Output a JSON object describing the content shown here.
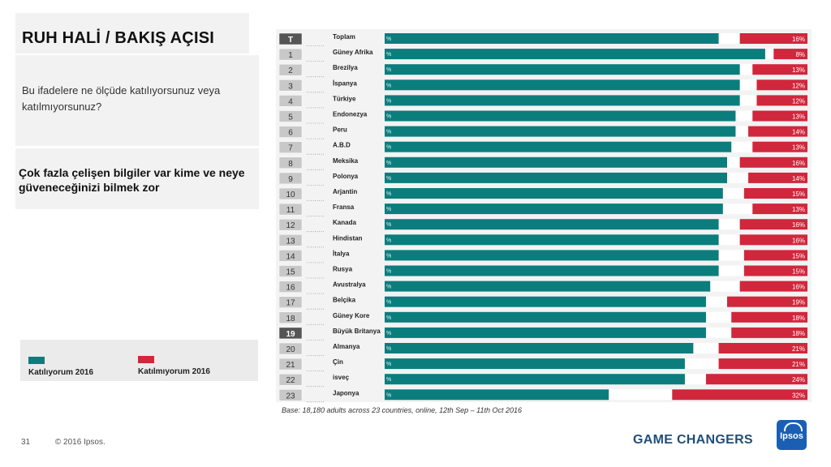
{
  "title": "RUH HALİ /  BAKIŞ AÇISI",
  "question": "Bu ifadelere ne ölçüde katılıyorsunuz veya katılmıyorsunuz?",
  "statement": "Çok fazla çelişen bilgiler var kime ve neye güveneceğinizi bilmek zor",
  "legend": {
    "agree": {
      "label": "Katılıyorum 2016",
      "color": "#0c7d7d"
    },
    "disagree": {
      "label": "Katılmıyorum 2016",
      "color": "#d0273c"
    }
  },
  "chart_data": {
    "type": "bar",
    "orientation": "horizontal",
    "ranks": [
      "T",
      "1",
      "2",
      "3",
      "4",
      "5",
      "6",
      "7",
      "8",
      "9",
      "10",
      "11",
      "12",
      "13",
      "14",
      "15",
      "16",
      "17",
      "18",
      "19",
      "20",
      "21",
      "22",
      "23"
    ],
    "categories": [
      "Toplam",
      "Güney Afrika",
      "Brezilya",
      "İspanya",
      "Türkiye",
      "Endonezya",
      "Peru",
      "A.B.D",
      "Meksika",
      "Polonya",
      "Arjantin",
      "Fransa",
      "Kanada",
      "Hindistan",
      "İtalya",
      "Rusya",
      "Avustralya",
      "Belçika",
      "Güney Kore",
      "Büyük Britanya",
      "Almanya",
      "Çin",
      "isveç",
      "Japonya"
    ],
    "series": [
      {
        "name": "Katılıyorum 2016",
        "label": "%",
        "values": [
          79,
          90,
          84,
          84,
          84,
          83,
          83,
          82,
          81,
          81,
          80,
          80,
          79,
          79,
          79,
          79,
          77,
          76,
          76,
          76,
          73,
          71,
          71,
          53
        ]
      },
      {
        "name": "Katılmıyorum 2016",
        "values": [
          16,
          8,
          13,
          12,
          12,
          13,
          14,
          13,
          16,
          14,
          15,
          13,
          16,
          16,
          15,
          15,
          16,
          19,
          18,
          18,
          21,
          21,
          24,
          32
        ],
        "labels": [
          "16%",
          "8%",
          "13%",
          "12%",
          "12%",
          "13%",
          "14%",
          "13%",
          "16%",
          "14%",
          "15%",
          "13%",
          "16%",
          "16%",
          "15%",
          "15%",
          "16%",
          "19%",
          "18%",
          "18%",
          "21%",
          "21%",
          "24%",
          "32%"
        ]
      }
    ],
    "xlim": [
      0,
      100
    ]
  },
  "base_note": "Base: 18,180 adults across 23 countries, online, 12th Sep – 11th Oct 2016",
  "footer": {
    "page": "31",
    "copyright": "© 2016 Ipsos."
  },
  "brand": {
    "tagline": "GAME CHANGERS",
    "logo": "Ipsos"
  }
}
